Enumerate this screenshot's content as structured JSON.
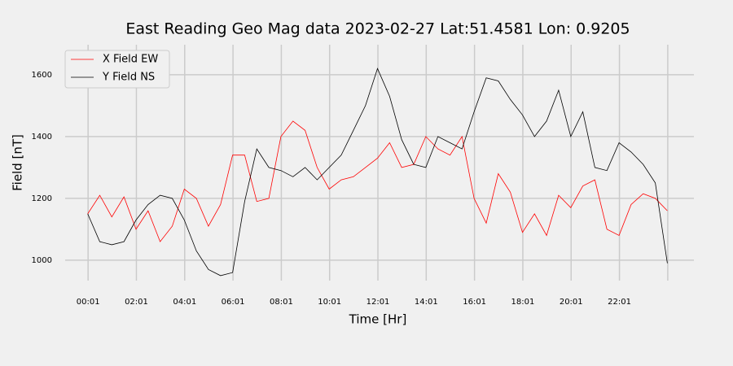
{
  "chart_data": {
    "type": "line",
    "title": "East Reading Geo Mag data        2023-02-27      Lat:51.4581  Lon: 0.9205",
    "x_label": "Time  [Hr]",
    "y_label": "Field  [nT]",
    "x": [
      0,
      30,
      60,
      90,
      120,
      150,
      180,
      210,
      240,
      270,
      300,
      330,
      360,
      390,
      420,
      450,
      480,
      510,
      540,
      570,
      600,
      630,
      660,
      690,
      720,
      750,
      780,
      810,
      840,
      870,
      900,
      930,
      960,
      990,
      1020,
      1050,
      1080,
      1110,
      1140,
      1170,
      1200,
      1230,
      1260,
      1290,
      1320,
      1350,
      1380,
      1410,
      1440
    ],
    "series": [
      {
        "name": "X Field EW",
        "color": "#ff0000",
        "values": [
          1150,
          1210,
          1140,
          1205,
          1100,
          1160,
          1060,
          1110,
          1230,
          1200,
          1110,
          1180,
          1340,
          1340,
          1190,
          1200,
          1400,
          1450,
          1420,
          1300,
          1230,
          1260,
          1270,
          1300,
          1330,
          1380,
          1300,
          1310,
          1400,
          1360,
          1340,
          1400,
          1200,
          1120,
          1280,
          1220,
          1090,
          1150,
          1080,
          1210,
          1170,
          1240,
          1260,
          1100,
          1080,
          1180,
          1215,
          1200,
          1160
        ]
      },
      {
        "name": "Y Field NS",
        "color": "#000000",
        "values": [
          1150,
          1060,
          1050,
          1060,
          1130,
          1180,
          1210,
          1200,
          1130,
          1030,
          970,
          950,
          960,
          1190,
          1360,
          1300,
          1290,
          1270,
          1300,
          1260,
          1300,
          1340,
          1420,
          1500,
          1620,
          1530,
          1390,
          1310,
          1300,
          1400,
          1380,
          1360,
          1480,
          1590,
          1580,
          1520,
          1470,
          1400,
          1450,
          1550,
          1400,
          1480,
          1300,
          1290,
          1380,
          1350,
          1310,
          1250,
          990
        ]
      }
    ],
    "xlim": [
      -56,
      1506
    ],
    "xticks": [
      {
        "value": 1,
        "label": "00:01"
      },
      {
        "value": 121,
        "label": "02:01"
      },
      {
        "value": 241,
        "label": "04:01"
      },
      {
        "value": 361,
        "label": "06:01"
      },
      {
        "value": 481,
        "label": "08:01"
      },
      {
        "value": 601,
        "label": "10:01"
      },
      {
        "value": 721,
        "label": "12:01"
      },
      {
        "value": 841,
        "label": "14:01"
      },
      {
        "value": 961,
        "label": "16:01"
      },
      {
        "value": 1081,
        "label": "18:01"
      },
      {
        "value": 1201,
        "label": "20:01"
      },
      {
        "value": 1321,
        "label": "22:01"
      },
      {
        "value": 1441,
        "label": null
      }
    ],
    "ylim": [
      934,
      1697
    ],
    "yticks": [
      1000,
      1200,
      1400,
      1600
    ],
    "grid": true,
    "legend": "upper left"
  }
}
